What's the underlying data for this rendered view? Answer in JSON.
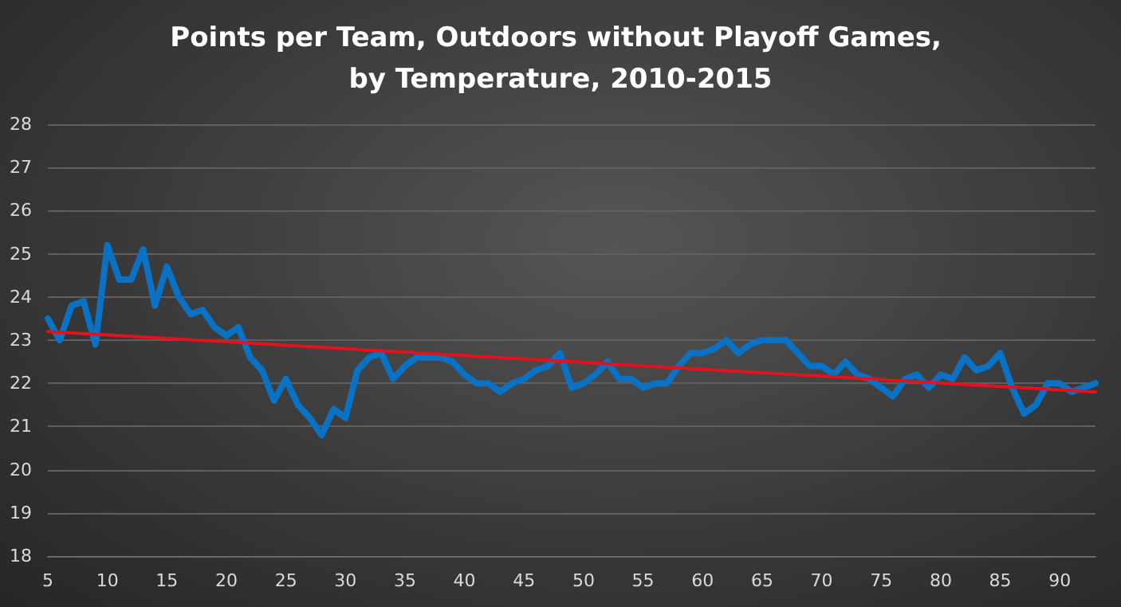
{
  "chart_data": {
    "type": "line",
    "title": "Points per Team, Outdoors without Playoff Games, by Temperature, 2010-2015",
    "x": [
      5,
      6,
      7,
      8,
      9,
      10,
      11,
      12,
      13,
      14,
      15,
      16,
      17,
      18,
      19,
      20,
      21,
      22,
      23,
      24,
      25,
      26,
      27,
      28,
      29,
      30,
      31,
      32,
      33,
      34,
      35,
      36,
      37,
      38,
      39,
      40,
      41,
      42,
      43,
      44,
      45,
      46,
      47,
      48,
      49,
      50,
      51,
      52,
      53,
      54,
      55,
      56,
      57,
      58,
      59,
      60,
      61,
      62,
      63,
      64,
      65,
      66,
      67,
      68,
      69,
      70,
      71,
      72,
      73,
      74,
      75,
      76,
      77,
      78,
      79,
      80,
      81,
      82,
      83,
      84,
      85,
      86,
      87,
      88,
      89,
      90,
      91,
      92,
      93
    ],
    "series": [
      {
        "color": "#0a72c4",
        "values": [
          23.5,
          23.0,
          23.8,
          23.9,
          22.9,
          25.2,
          24.4,
          24.4,
          25.1,
          23.8,
          24.7,
          24.0,
          23.6,
          23.7,
          23.3,
          23.1,
          23.3,
          22.6,
          22.3,
          21.6,
          22.1,
          21.5,
          21.2,
          20.8,
          21.4,
          21.2,
          22.3,
          22.6,
          22.7,
          22.1,
          22.4,
          22.6,
          22.6,
          22.6,
          22.5,
          22.2,
          22.0,
          22.0,
          21.8,
          22.0,
          22.1,
          22.3,
          22.4,
          22.7,
          21.9,
          22.0,
          22.2,
          22.5,
          22.1,
          22.1,
          21.9,
          22.0,
          22.0,
          22.4,
          22.7,
          22.7,
          22.8,
          23.0,
          22.7,
          22.9,
          23.0,
          23.0,
          23.0,
          22.7,
          22.4,
          22.4,
          22.2,
          22.5,
          22.2,
          22.1,
          21.9,
          21.7,
          22.1,
          22.2,
          21.9,
          22.2,
          22.1,
          22.6,
          22.3,
          22.4,
          22.7,
          21.9,
          21.3,
          21.5,
          22.0,
          22.0,
          21.8,
          21.9,
          22.0
        ]
      },
      {
        "type": "line",
        "color": "#e3121b",
        "x": [
          5,
          93
        ],
        "values": [
          23.2,
          21.8
        ]
      }
    ],
    "xlim": [
      5,
      93
    ],
    "xticks": [
      5,
      10,
      15,
      20,
      25,
      30,
      35,
      40,
      45,
      50,
      55,
      60,
      65,
      70,
      75,
      80,
      85,
      90
    ],
    "ylim": [
      18,
      28
    ],
    "yticks": [
      18,
      19,
      20,
      21,
      22,
      23,
      24,
      25,
      26,
      27,
      28
    ],
    "grid": "y",
    "marker": "none",
    "line_style": "solid"
  }
}
